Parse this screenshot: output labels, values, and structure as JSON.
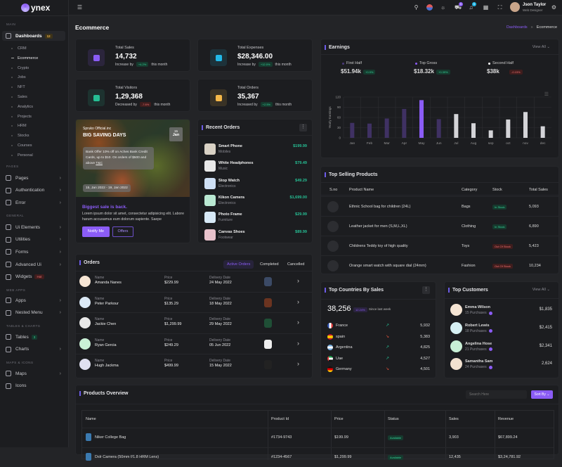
{
  "brand": {
    "logo_text": "ynex"
  },
  "sidebar": {
    "sections": [
      "MAIN",
      "PAGES",
      "GENERAL",
      "WEB APPS",
      "TABLES & CHARTS",
      "MAPS & ICONS"
    ],
    "dashboards": {
      "label": "Dashboards",
      "badge": "12"
    },
    "sub_items": [
      "CRM",
      "Ecommerce",
      "Crypto",
      "Jobs",
      "NFT",
      "Sales",
      "Analytics",
      "Projects",
      "HRM",
      "Stocks",
      "Courses",
      "Personal"
    ],
    "pages": [
      {
        "label": "Pages"
      },
      {
        "label": "Authentication"
      },
      {
        "label": "Error"
      }
    ],
    "general": [
      {
        "label": "Ui Elements"
      },
      {
        "label": "Utilities"
      },
      {
        "label": "Forms"
      },
      {
        "label": "Advanced Ui"
      },
      {
        "label": "Widgets",
        "badge": "Hot"
      }
    ],
    "webapps": [
      {
        "label": "Apps"
      },
      {
        "label": "Nested Menu"
      }
    ],
    "tables": [
      {
        "label": "Tables",
        "badge": "3"
      },
      {
        "label": "Charts"
      }
    ],
    "maps": [
      {
        "label": "Maps"
      },
      {
        "label": "Icons"
      }
    ]
  },
  "header": {
    "user_name": "Json Taylor",
    "user_role": "Web Designer",
    "cart_count": "5",
    "notif_count": "5"
  },
  "page": {
    "title": "Ecommerce",
    "breadcrumb": [
      "Dashboards",
      "Ecommerce"
    ]
  },
  "stats": [
    {
      "label": "Total Sales",
      "value": "14,732",
      "trend_text": "Increase by",
      "change": "+4.2%",
      "suffix": "this month",
      "dir": "up",
      "color": "#8b5cf6"
    },
    {
      "label": "Total Expenses",
      "value": "$28,346.00",
      "trend_text": "Increase by",
      "change": "+12.0%",
      "suffix": "this month",
      "dir": "up",
      "color": "#22b8e8"
    },
    {
      "label": "Total Visitors",
      "value": "1,29,368",
      "trend_text": "Decreased by",
      "change": "-7.6%",
      "suffix": "this month",
      "dir": "down",
      "color": "#26bf94"
    },
    {
      "label": "Total Orders",
      "value": "35,367",
      "trend_text": "Increased by",
      "change": "+2.5%",
      "suffix": "this month",
      "dir": "up",
      "color": "#f5b849"
    }
  ],
  "promo": {
    "brand": "Spruko Official.inc",
    "title": "BIG SAVING DAYS",
    "date_day": "15",
    "date_month": "Jan",
    "offer": "Bank Offer 10% off on Aches Bank Credit Cards, up to $10. On orders of $500 and above",
    "tnc": "T&C",
    "range": "15, Jan 2022 - 19, Jan 2022",
    "headline": "Biggest sale is back.",
    "text": "Lorem ipsum dolor sit amet, consectetur adipisicing elit. Labore harum accusamus eum dolorum sapiente. Saepe",
    "notify": "Notify Me",
    "offers": "Offers"
  },
  "recent_orders": {
    "title": "Recent Orders",
    "items": [
      {
        "name": "Smart Phone",
        "category": "Mobiles",
        "price": "$199.99"
      },
      {
        "name": "White Headphones",
        "category": "Music",
        "price": "$79.49"
      },
      {
        "name": "Stop Watch",
        "category": "Electronics",
        "price": "$49.29"
      },
      {
        "name": "Kikon Camera",
        "category": "Electronics",
        "price": "$1,699.00"
      },
      {
        "name": "Photo Frame",
        "category": "Furniture",
        "price": "$29.99"
      },
      {
        "name": "Canvas Shoes",
        "category": "Footwear",
        "price": "$89.99"
      }
    ]
  },
  "orders": {
    "title": "Orders",
    "tabs": [
      "Active Orders",
      "Completed",
      "Cancelled"
    ],
    "labels": {
      "name": "Name",
      "price": "Price",
      "date": "Delivery Date"
    },
    "rows": [
      {
        "name": "Amanda Nanes",
        "price": "$229.99",
        "date": "24 May 2022"
      },
      {
        "name": "Peter Parkour",
        "price": "$135.29",
        "date": "18 May 2022"
      },
      {
        "name": "Jackie Chen",
        "price": "$1,299.99",
        "date": "29 May 2022"
      },
      {
        "name": "Ryan Gercia",
        "price": "$249.29",
        "date": "05 Jun 2022"
      },
      {
        "name": "Hugh Jackma",
        "price": "$499.99",
        "date": "15 May 2022"
      }
    ]
  },
  "earnings": {
    "title": "Earnings",
    "view_all": "View All",
    "summary": [
      {
        "label": "First Half",
        "value": "$51.94k",
        "change": "+0.9%",
        "dir": "up",
        "color": "#4b3a7a"
      },
      {
        "label": "Top Gross",
        "value": "$18.32k",
        "change": "+0.39%",
        "dir": "up",
        "color": "#8b5cf6"
      },
      {
        "label": "Second Half",
        "value": "$38k",
        "change": "-0.15%",
        "dir": "down",
        "color": "#ffffff"
      }
    ]
  },
  "chart_data": {
    "type": "bar",
    "ylabel": "Yearly Earnings",
    "ylim": [
      0,
      120
    ],
    "yticks": [
      0,
      30,
      60,
      90,
      120
    ],
    "grid": true,
    "categories": [
      "Jan",
      "Feb",
      "Mar",
      "Apr",
      "May",
      "Jun",
      "Jul",
      "Aug",
      "sep",
      "oct",
      "nov",
      "dec"
    ],
    "values": [
      44,
      42,
      57,
      85,
      111,
      55,
      70,
      43,
      22,
      54,
      76,
      34
    ],
    "colors": [
      "#3f3163",
      "#3f3163",
      "#3f3163",
      "#3f3163",
      "#8b5cf6",
      "#3f3163",
      "#d4d4d8",
      "#d4d4d8",
      "#d4d4d8",
      "#d4d4d8",
      "#d4d4d8",
      "#d4d4d8"
    ]
  },
  "top_selling": {
    "title": "Top Selling Products",
    "columns": [
      "S.no",
      "Product Name",
      "Category",
      "Stock",
      "Total Sales"
    ],
    "rows": [
      {
        "name": "Ethnic School bag for children (24L)",
        "category": "Bags",
        "stock": "In Stock",
        "instock": true,
        "sales": "5,093"
      },
      {
        "name": "Leather jacket for men (S,M,L,XL)",
        "category": "Clothing",
        "stock": "In Stock",
        "instock": true,
        "sales": "6,890"
      },
      {
        "name": "Childrens Teddy toy of high quality",
        "category": "Toys",
        "stock": "Out Of Stock",
        "instock": false,
        "sales": "5,423"
      },
      {
        "name": "Orange smart watch with square dial (24mm)",
        "category": "Fashion",
        "stock": "Out Of Stock",
        "instock": false,
        "sales": "10,234"
      }
    ]
  },
  "countries": {
    "title": "Top Countries By Sales",
    "total": "38,256",
    "change": "12.24%",
    "since": "Since last week",
    "rows": [
      {
        "name": "France",
        "value": "5,932",
        "dir": "up"
      },
      {
        "name": "spain",
        "value": "5,383",
        "dir": "down"
      },
      {
        "name": "Argentina",
        "value": "4,825",
        "dir": "up"
      },
      {
        "name": "Uae",
        "value": "4,527",
        "dir": "up"
      },
      {
        "name": "Germany",
        "value": "4,501",
        "dir": "down"
      }
    ]
  },
  "customers": {
    "title": "Top Customers",
    "view_all": "View All",
    "rows": [
      {
        "name": "Emma Wilson",
        "purchases": "15 Purchases",
        "amount": "$1,835"
      },
      {
        "name": "Robert Lewis",
        "purchases": "18 Purchases",
        "amount": "$2,415"
      },
      {
        "name": "Angelina Hose",
        "purchases": "21 Purchases",
        "amount": "$2,341"
      },
      {
        "name": "Samantha Sam",
        "purchases": "24 Purchases",
        "amount": "2,624"
      }
    ]
  },
  "products": {
    "title": "Products Overview",
    "search_placeholder": "Search Here",
    "sort": "Sort By",
    "columns": [
      "Name",
      "Product Id",
      "Price",
      "Status",
      "Sales",
      "Revenue"
    ],
    "rows": [
      {
        "name": "Niker College Bag",
        "id": "#1734-9743",
        "price": "$199.99",
        "status": "Available",
        "sales": "3,903",
        "revenue": "$67,899.24"
      },
      {
        "name": "Dslr Camera (50mm f/1.8 HRM Lens)",
        "id": "#1234-4567",
        "price": "$1,299.99",
        "status": "Available",
        "sales": "12,435",
        "revenue": "$3,24,781.92"
      }
    ]
  }
}
